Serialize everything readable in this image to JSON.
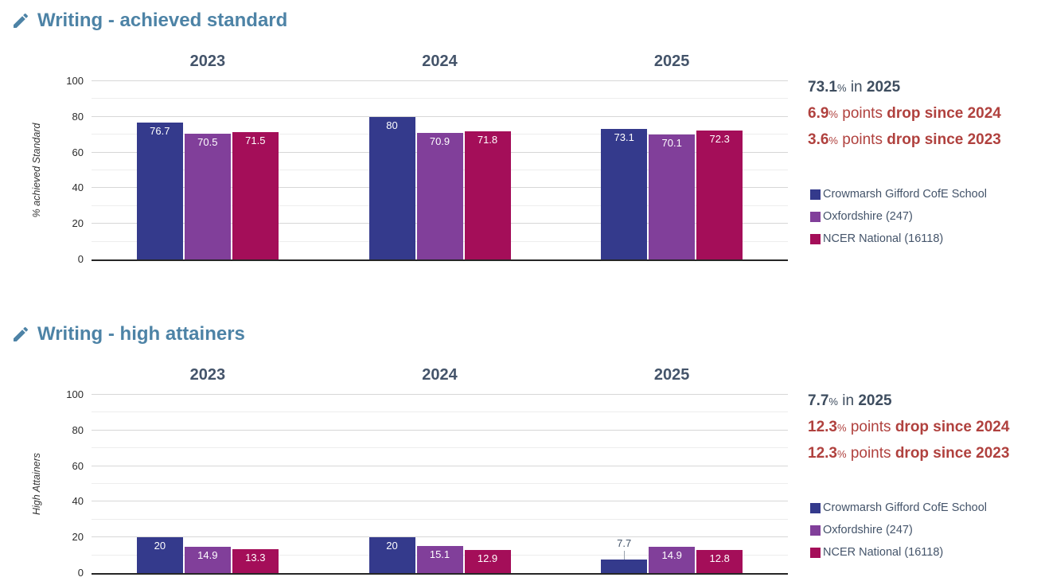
{
  "chart_data": [
    {
      "type": "bar",
      "title": "Writing - achieved standard",
      "title_icon": "pencil-icon",
      "ylabel": "% achieved Standard",
      "ylim": [
        0,
        100
      ],
      "yticks": [
        0,
        20,
        40,
        60,
        80,
        100
      ],
      "grid": "horizontal, minor line every 10",
      "legend_position": "right",
      "categories": [
        "2023",
        "2024",
        "2025"
      ],
      "series": [
        {
          "name": "Crowmarsh Gifford CofE School",
          "color": "#343a8c",
          "values": [
            76.7,
            80,
            73.1
          ]
        },
        {
          "name": "Oxfordshire (247)",
          "color": "#813f9a",
          "values": [
            70.5,
            70.9,
            70.1
          ]
        },
        {
          "name": "NCER National (16118)",
          "color": "#a40e59",
          "values": [
            71.5,
            71.8,
            72.3
          ]
        }
      ],
      "annotations": {
        "headline": {
          "value": "73.1",
          "unit": "%",
          "mid": "in",
          "strong": "2025"
        },
        "changes": [
          {
            "value": "6.9",
            "unit": "%",
            "mid": "points",
            "strong": "drop since 2024"
          },
          {
            "value": "3.6",
            "unit": "%",
            "mid": "points",
            "strong": "drop since 2023"
          }
        ]
      }
    },
    {
      "type": "bar",
      "title": "Writing - high attainers",
      "title_icon": "pencil-icon",
      "ylabel": "High Attainers",
      "ylim": [
        0,
        100
      ],
      "yticks": [
        0,
        20,
        40,
        60,
        80,
        100
      ],
      "grid": "horizontal, minor line every 10",
      "legend_position": "right",
      "categories": [
        "2023",
        "2024",
        "2025"
      ],
      "series": [
        {
          "name": "Crowmarsh Gifford CofE School",
          "color": "#343a8c",
          "values": [
            20,
            20,
            7.7
          ]
        },
        {
          "name": "Oxfordshire (247)",
          "color": "#813f9a",
          "values": [
            14.9,
            15.1,
            14.9
          ]
        },
        {
          "name": "NCER National (16118)",
          "color": "#a40e59",
          "values": [
            13.3,
            12.9,
            12.8
          ]
        }
      ],
      "annotations": {
        "headline": {
          "value": "7.7",
          "unit": "%",
          "mid": "in",
          "strong": "2025"
        },
        "changes": [
          {
            "value": "12.3",
            "unit": "%",
            "mid": "points",
            "strong": "drop since 2024"
          },
          {
            "value": "12.3",
            "unit": "%",
            "mid": "points",
            "strong": "drop since 2023"
          }
        ]
      }
    }
  ],
  "colors": {
    "title": "#4d83a6",
    "year_header": "#44546a",
    "headline_text": "#3e4d5f",
    "change_text": "#b0413e",
    "legend_text": "#44546a",
    "axis_line": "#262626",
    "major_grid": "#d7d7d7",
    "minor_grid": "#ededed"
  }
}
